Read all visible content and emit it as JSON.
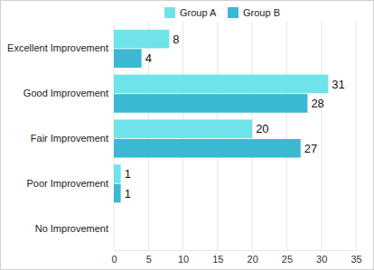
{
  "chart_data": {
    "type": "bar",
    "orientation": "horizontal",
    "categories": [
      "Excellent Improvement",
      "Good Improvement",
      "Fair Improvement",
      "Poor Improvement",
      "No Improvement"
    ],
    "series": [
      {
        "name": "Group A",
        "color": "#6fe3ea",
        "values": [
          8,
          31,
          20,
          1,
          null
        ]
      },
      {
        "name": "Group B",
        "color": "#3bb9d3",
        "values": [
          4,
          28,
          27,
          1,
          null
        ]
      }
    ],
    "xlim": [
      0,
      35
    ],
    "xticks": [
      0,
      5,
      10,
      15,
      20,
      25,
      30,
      35
    ],
    "grid": true,
    "legend": "top",
    "data_labels": true
  }
}
